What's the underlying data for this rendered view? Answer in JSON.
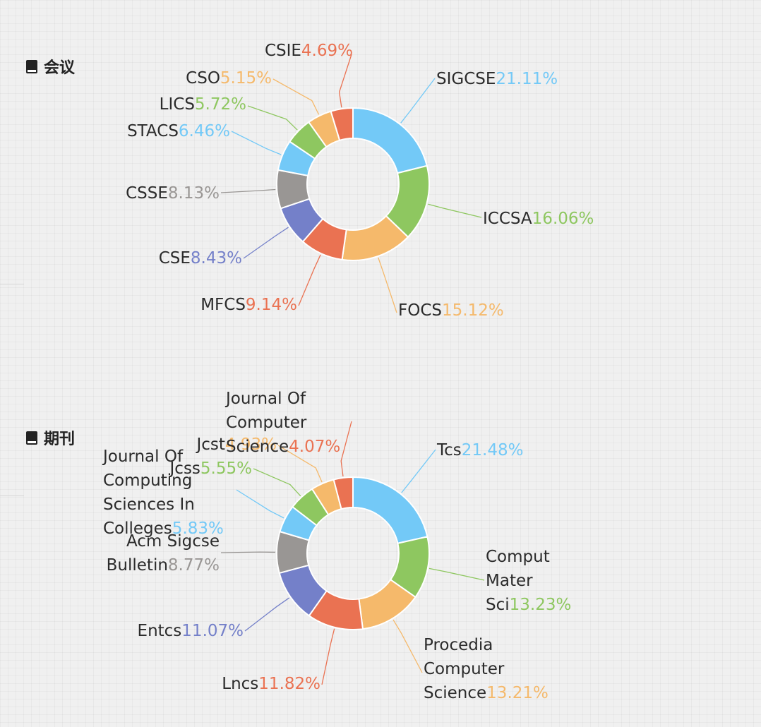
{
  "sections": [
    {
      "title": "会议",
      "icon": "book-icon"
    },
    {
      "title": "期刊",
      "icon": "book-icon"
    }
  ],
  "chart_data": [
    {
      "type": "pie",
      "variant": "donut",
      "series": [
        {
          "name": "SIGCSE",
          "value": 21.11,
          "label": [
            "SIGCSE"
          ],
          "pct": "21.11%",
          "color": "#73c9f7"
        },
        {
          "name": "ICCSA",
          "value": 16.06,
          "label": [
            "ICCSA"
          ],
          "pct": "16.06%",
          "color": "#8ec760"
        },
        {
          "name": "FOCS",
          "value": 15.12,
          "label": [
            "FOCS"
          ],
          "pct": "15.12%",
          "color": "#f5b96b"
        },
        {
          "name": "MFCS",
          "value": 9.14,
          "label": [
            "MFCS"
          ],
          "pct": "9.14%",
          "color": "#ea7252"
        },
        {
          "name": "CSE",
          "value": 8.43,
          "label": [
            "CSE"
          ],
          "pct": "8.43%",
          "color": "#7480c9"
        },
        {
          "name": "CSSE",
          "value": 8.13,
          "label": [
            "CSSE"
          ],
          "pct": "8.13%",
          "color": "#999694"
        },
        {
          "name": "STACS",
          "value": 6.46,
          "label": [
            "STACS"
          ],
          "pct": "6.46%",
          "color": "#73c9f7"
        },
        {
          "name": "LICS",
          "value": 5.72,
          "label": [
            "LICS"
          ],
          "pct": "5.72%",
          "color": "#8ec760"
        },
        {
          "name": "CSO",
          "value": 5.15,
          "label": [
            "CSO"
          ],
          "pct": "5.15%",
          "color": "#f5b96b"
        },
        {
          "name": "CSIE",
          "value": 4.69,
          "label": [
            "CSIE"
          ],
          "pct": "4.69%",
          "color": "#ea7252"
        }
      ]
    },
    {
      "type": "pie",
      "variant": "donut",
      "series": [
        {
          "name": "Tcs",
          "value": 21.48,
          "label": [
            "Tcs"
          ],
          "pct": "21.48%",
          "color": "#73c9f7"
        },
        {
          "name": "Comput Mater Sci",
          "value": 13.23,
          "label": [
            "Comput",
            "Mater",
            "Sci"
          ],
          "pct": "13.23%",
          "color": "#8ec760"
        },
        {
          "name": "Procedia Computer Science",
          "value": 13.21,
          "label": [
            "Procedia",
            "Computer",
            "Science"
          ],
          "pct": "13.21%",
          "color": "#f5b96b"
        },
        {
          "name": "Lncs",
          "value": 11.82,
          "label": [
            "Lncs"
          ],
          "pct": "11.82%",
          "color": "#ea7252"
        },
        {
          "name": "Entcs",
          "value": 11.07,
          "label": [
            "Entcs"
          ],
          "pct": "11.07%",
          "color": "#7480c9"
        },
        {
          "name": "Acm Sigcse Bulletin",
          "value": 8.77,
          "label": [
            "Acm Sigcse",
            "Bulletin"
          ],
          "pct": "8.77%",
          "color": "#999694"
        },
        {
          "name": "Journal Of Computing Sciences In Colleges",
          "value": 5.83,
          "label": [
            "Journal Of",
            "Computing",
            "Sciences In",
            "Colleges"
          ],
          "pct": "5.83%",
          "color": "#73c9f7"
        },
        {
          "name": "Jcss",
          "value": 5.55,
          "label": [
            "Jcss"
          ],
          "pct": "5.55%",
          "color": "#8ec760"
        },
        {
          "name": "Jcst",
          "value": 4.93,
          "label": [
            "Jcst"
          ],
          "pct": "4.93%",
          "color": "#f5b96b"
        },
        {
          "name": "Journal Of Computer Science",
          "value": 4.07,
          "label": [
            "Journal Of",
            "Computer",
            "Science"
          ],
          "pct": "4.07%",
          "color": "#ea7252"
        }
      ]
    }
  ]
}
